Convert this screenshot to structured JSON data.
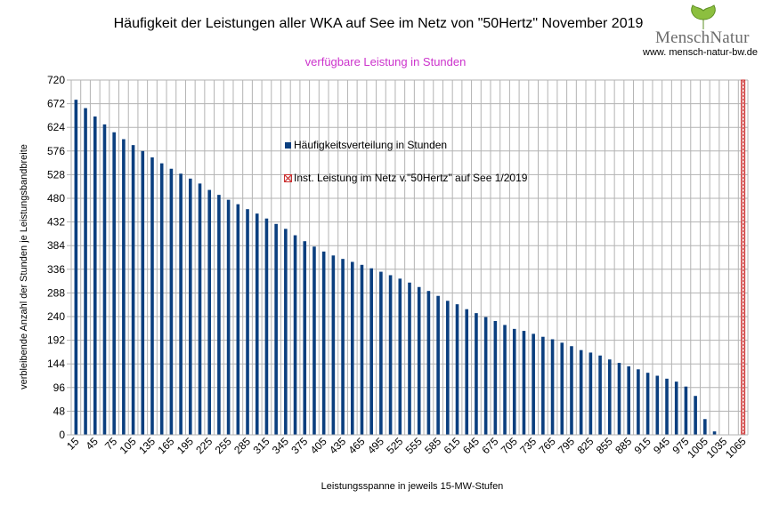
{
  "header": {
    "title": "Häufigkeit der Leistungen aller WKA auf See im Netz von \"50Hertz\" November 2019",
    "subtitle": "verfügbare Leistung in Stunden",
    "subtitle_color": "#cc33cc"
  },
  "logo": {
    "name": "MenschNatur",
    "url": "www. mensch-natur-bw.de",
    "leaf_color": "#8cbf3f"
  },
  "chart_data": {
    "type": "bar",
    "xlabel": "Leistungsspanne in jeweils 15-MW-Stufen",
    "ylabel": "verbleibende Anzahl der Stunden je Leistungsbandbreite",
    "ylim": [
      0,
      720
    ],
    "yticks": [
      0,
      48,
      96,
      144,
      192,
      240,
      288,
      336,
      384,
      432,
      480,
      528,
      576,
      624,
      672,
      720
    ],
    "grid": true,
    "legend_position": "inside-top-center",
    "categories": [
      15,
      30,
      45,
      60,
      75,
      90,
      105,
      120,
      135,
      150,
      165,
      180,
      195,
      210,
      225,
      240,
      255,
      270,
      285,
      300,
      315,
      330,
      345,
      360,
      375,
      390,
      405,
      420,
      435,
      450,
      465,
      480,
      495,
      510,
      525,
      540,
      555,
      570,
      585,
      600,
      615,
      630,
      645,
      660,
      675,
      690,
      705,
      720,
      735,
      750,
      765,
      780,
      795,
      810,
      825,
      840,
      855,
      870,
      885,
      900,
      915,
      930,
      945,
      960,
      975,
      990,
      1005,
      1020,
      1035,
      1050,
      1065
    ],
    "x_tick_labels": [
      "15",
      "45",
      "75",
      "105",
      "135",
      "165",
      "195",
      "225",
      "255",
      "285",
      "315",
      "345",
      "375",
      "405",
      "435",
      "465",
      "495",
      "525",
      "555",
      "585",
      "615",
      "645",
      "675",
      "705",
      "735",
      "765",
      "795",
      "825",
      "855",
      "885",
      "915",
      "945",
      "975",
      "1005",
      "1035",
      "1065"
    ],
    "series": [
      {
        "name": "Häufigkeitsverteilung in Stunden",
        "color": "#0b3f7f",
        "values": [
          680,
          663,
          646,
          630,
          614,
          600,
          588,
          576,
          563,
          551,
          540,
          530,
          520,
          510,
          497,
          487,
          477,
          468,
          458,
          449,
          439,
          428,
          418,
          405,
          393,
          382,
          372,
          364,
          357,
          351,
          345,
          338,
          331,
          324,
          317,
          309,
          300,
          292,
          282,
          272,
          265,
          255,
          247,
          239,
          231,
          223,
          215,
          211,
          205,
          199,
          194,
          187,
          180,
          172,
          167,
          161,
          153,
          146,
          139,
          133,
          126,
          120,
          114,
          108,
          98,
          79,
          32,
          7,
          0,
          0,
          0
        ]
      },
      {
        "name": "Inst. Leistung im Netz v.\"50Hertz\" auf See 1/2019",
        "color": "#cc3333",
        "x": 1065,
        "value": 720
      }
    ]
  }
}
